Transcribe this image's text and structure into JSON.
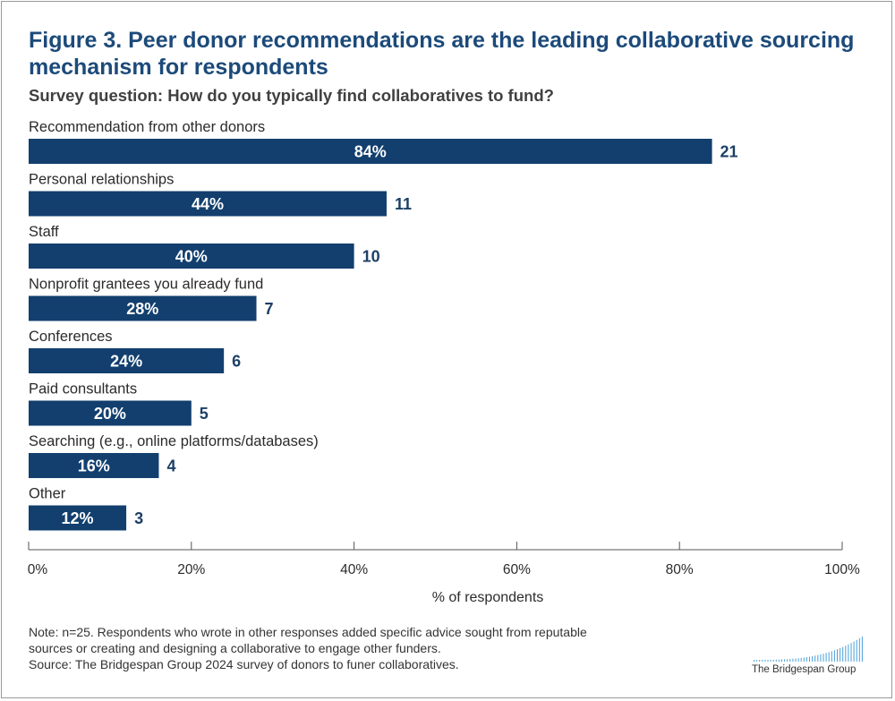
{
  "title": "Figure 3. Peer donor recommendations are the leading collaborative sourcing mechanism for respondents",
  "subtitle": "Survey question: How do you typically find collaboratives to fund?",
  "colors": {
    "bar": "#123f6e",
    "title": "#1c4a7a",
    "count": "#1c3f66"
  },
  "chart_data": {
    "type": "bar",
    "orientation": "horizontal",
    "categories": [
      "Recommendation from other donors",
      "Personal relationships",
      "Staff",
      "Nonprofit grantees you already fund",
      "Conferences",
      "Paid consultants",
      "Searching (e.g., online platforms/databases)",
      "Other"
    ],
    "values": [
      84,
      44,
      40,
      28,
      24,
      20,
      16,
      12
    ],
    "value_labels": [
      "84%",
      "44%",
      "40%",
      "28%",
      "24%",
      "20%",
      "16%",
      "12%"
    ],
    "counts": [
      "21",
      "11",
      "10",
      "7",
      "6",
      "5",
      "4",
      "3"
    ],
    "xlabel": "% of respondents",
    "xlim": [
      0,
      100
    ],
    "xticks": [
      0,
      20,
      40,
      60,
      80,
      100
    ],
    "xtick_labels": [
      "0%",
      "20%",
      "40%",
      "60%",
      "80%",
      "100%"
    ],
    "grid": false,
    "legend": "none"
  },
  "notes": {
    "line1": "Note: n=25. Respondents who wrote in other responses added specific advice sought from reputable",
    "line2": "sources or creating and designing a collaborative to engage other funders.",
    "line3": "Source: The Bridgespan Group 2024 survey of donors to funer collaboratives."
  },
  "logo": {
    "text": "The Bridgespan Group"
  }
}
